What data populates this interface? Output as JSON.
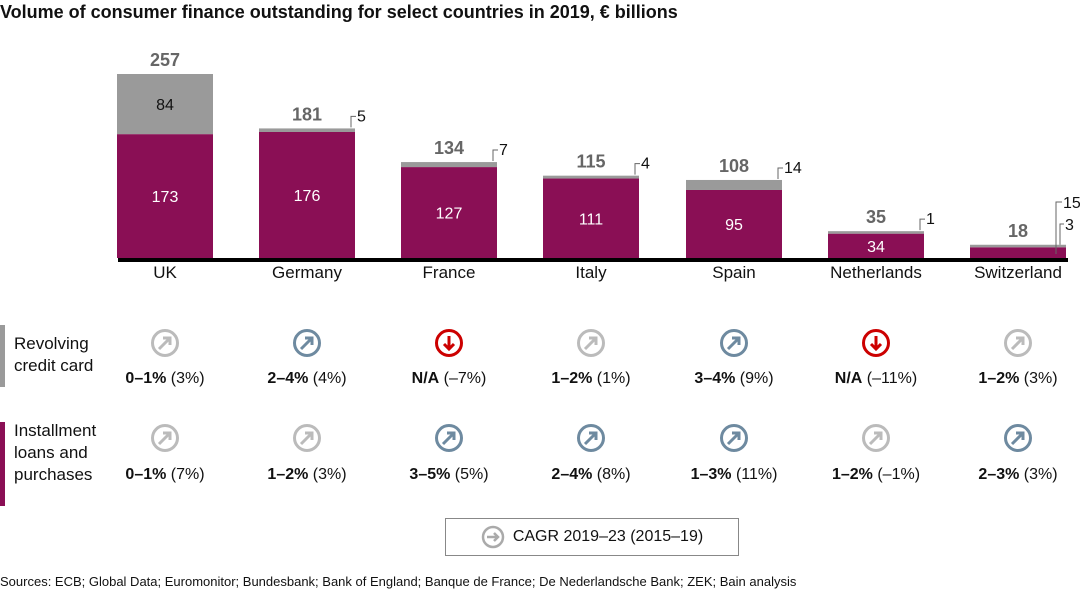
{
  "title": "Volume of consumer finance outstanding for select countries in 2019, € billions",
  "chart_data": {
    "type": "bar",
    "stacked": true,
    "categories": [
      "UK",
      "Germany",
      "France",
      "Italy",
      "Spain",
      "Netherlands",
      "Switzerland"
    ],
    "series": [
      {
        "name": "Installment loans and purchases",
        "color": "#8a0f55",
        "values": [
          173,
          176,
          127,
          111,
          95,
          34,
          15
        ]
      },
      {
        "name": "Revolving credit card",
        "color": "#9a9a9a",
        "values": [
          84,
          5,
          7,
          4,
          14,
          1,
          3
        ]
      }
    ],
    "totals": [
      257,
      181,
      134,
      115,
      108,
      35,
      18
    ],
    "grid": false
  },
  "rows": [
    {
      "label_lines": [
        "Revolving",
        "credit card"
      ],
      "color": "#9a9a9a",
      "items": [
        {
          "range": "0–1%",
          "hist": "(3%)",
          "icon": "up-right",
          "icon_color": "#bbbbbb"
        },
        {
          "range": "2–4%",
          "hist": "(4%)",
          "icon": "up-right",
          "icon_color": "#6e8aa0"
        },
        {
          "range": "N/A",
          "hist": "(–7%)",
          "icon": "down",
          "icon_color": "#cc0000"
        },
        {
          "range": "1–2%",
          "hist": "(1%)",
          "icon": "up-right",
          "icon_color": "#bbbbbb"
        },
        {
          "range": "3–4%",
          "hist": "(9%)",
          "icon": "up-right",
          "icon_color": "#6e8aa0"
        },
        {
          "range": "N/A",
          "hist": "(–11%)",
          "icon": "down",
          "icon_color": "#cc0000"
        },
        {
          "range": "1–2%",
          "hist": "(3%)",
          "icon": "up-right",
          "icon_color": "#bbbbbb"
        }
      ]
    },
    {
      "label_lines": [
        "Installment",
        "loans and",
        "purchases"
      ],
      "color": "#8a0f55",
      "items": [
        {
          "range": "0–1%",
          "hist": "(7%)",
          "icon": "up-right",
          "icon_color": "#bbbbbb"
        },
        {
          "range": "1–2%",
          "hist": "(3%)",
          "icon": "up-right",
          "icon_color": "#bbbbbb"
        },
        {
          "range": "3–5%",
          "hist": "(5%)",
          "icon": "up-right",
          "icon_color": "#6e8aa0"
        },
        {
          "range": "2–4%",
          "hist": "(8%)",
          "icon": "up-right",
          "icon_color": "#6e8aa0"
        },
        {
          "range": "1–3%",
          "hist": "(11%)",
          "icon": "up-right",
          "icon_color": "#6e8aa0"
        },
        {
          "range": "1–2%",
          "hist": "(–1%)",
          "icon": "up-right",
          "icon_color": "#bbbbbb"
        },
        {
          "range": "2–3%",
          "hist": "(3%)",
          "icon": "up-right",
          "icon_color": "#6e8aa0"
        }
      ]
    }
  ],
  "legend": {
    "text": "CAGR 2019–23 (2015–19)",
    "icon": "right-arrow-circle",
    "icon_color": "#aaaaaa"
  },
  "source": "Sources: ECB; Global Data; Euromonitor; Bundesbank; Bank of England; Banque de France; De Nederlandsche Bank; ZEK; Bain analysis"
}
